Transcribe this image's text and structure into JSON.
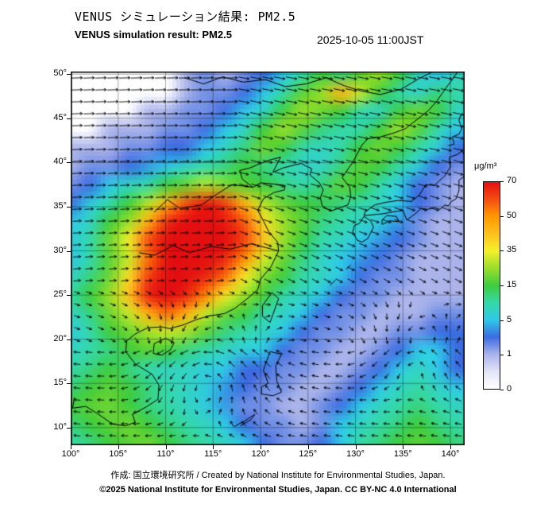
{
  "header": {
    "title_jp": "VENUS シミュレーション結果: PM2.5",
    "title_en": "VENUS simulation result: PM2.5",
    "timestamp": "2025-10-05 11:00JST"
  },
  "footer": {
    "credit": "作成: 国立環境研究所 / Created by National Institute for Environmental Studies, Japan.",
    "license": "©2025 National Institute for Environmental Studies, Japan. CC BY-NC 4.0 International"
  },
  "colorbar": {
    "unit": "μg/m³",
    "ticks": [
      0,
      1,
      5,
      15,
      35,
      50,
      70
    ]
  },
  "axes": {
    "x_ticks": [
      "100°",
      "105°",
      "110°",
      "115°",
      "120°",
      "125°",
      "130°",
      "135°",
      "140°"
    ],
    "x_tick_lons": [
      100,
      105,
      110,
      115,
      120,
      125,
      130,
      135,
      140
    ],
    "y_ticks": [
      "50°",
      "45°",
      "40°",
      "35°",
      "30°",
      "25°",
      "20°",
      "15°",
      "10°"
    ],
    "y_tick_lats": [
      50,
      45,
      40,
      35,
      30,
      25,
      20,
      15,
      10
    ]
  },
  "chart_data": {
    "type": "heatmap",
    "title": "VENUS simulation result: PM2.5",
    "unit": "μg/m³",
    "plot_range": {
      "lon": [
        100,
        141.5
      ],
      "lat": [
        8,
        50.3
      ]
    },
    "lon": [
      100,
      102,
      104,
      106,
      108,
      110,
      112,
      114,
      116,
      118,
      120,
      122,
      124,
      126,
      128,
      130,
      132,
      134,
      136,
      138,
      140
    ],
    "lat": [
      50,
      48,
      46,
      44,
      42,
      40,
      38,
      36,
      34,
      32,
      30,
      28,
      26,
      24,
      22,
      20,
      18,
      16,
      14,
      12,
      10
    ],
    "values": [
      [
        0,
        0,
        0,
        0,
        0,
        0,
        1,
        2,
        1,
        2,
        3,
        5,
        10,
        15,
        12,
        18,
        25,
        15,
        8,
        5,
        8
      ],
      [
        0,
        0,
        0,
        0,
        0,
        0,
        1,
        2,
        2,
        3,
        5,
        10,
        18,
        25,
        45,
        30,
        15,
        10,
        8,
        12,
        10
      ],
      [
        0,
        0,
        0,
        0,
        1,
        1,
        2,
        2,
        3,
        5,
        8,
        15,
        25,
        20,
        15,
        10,
        8,
        15,
        20,
        15,
        8
      ],
      [
        0,
        0,
        1,
        1,
        1,
        2,
        2,
        3,
        5,
        8,
        15,
        25,
        18,
        12,
        10,
        10,
        15,
        25,
        18,
        10,
        5
      ],
      [
        1,
        1,
        1,
        2,
        2,
        3,
        3,
        5,
        8,
        12,
        20,
        15,
        10,
        8,
        10,
        15,
        20,
        15,
        10,
        6,
        3
      ],
      [
        1,
        2,
        2,
        3,
        4,
        5,
        8,
        10,
        12,
        15,
        12,
        10,
        8,
        8,
        12,
        18,
        15,
        10,
        6,
        3,
        2
      ],
      [
        2,
        3,
        5,
        8,
        10,
        15,
        20,
        28,
        22,
        18,
        15,
        12,
        10,
        12,
        18,
        15,
        10,
        6,
        3,
        2,
        1
      ],
      [
        3,
        6,
        10,
        15,
        28,
        45,
        60,
        68,
        62,
        45,
        28,
        20,
        15,
        14,
        12,
        10,
        8,
        5,
        3,
        2,
        1
      ],
      [
        5,
        8,
        15,
        25,
        45,
        65,
        70,
        70,
        68,
        58,
        38,
        25,
        18,
        12,
        10,
        8,
        6,
        4,
        2,
        1,
        1
      ],
      [
        6,
        10,
        20,
        35,
        60,
        70,
        70,
        70,
        70,
        62,
        42,
        25,
        15,
        10,
        8,
        5,
        4,
        3,
        2,
        1,
        1
      ],
      [
        5,
        10,
        18,
        30,
        55,
        70,
        70,
        70,
        66,
        52,
        32,
        20,
        12,
        8,
        5,
        4,
        3,
        2,
        1,
        1,
        1
      ],
      [
        8,
        12,
        20,
        38,
        62,
        70,
        70,
        66,
        56,
        36,
        22,
        15,
        10,
        8,
        5,
        3,
        2,
        2,
        1,
        1,
        1
      ],
      [
        10,
        15,
        25,
        42,
        66,
        70,
        66,
        52,
        36,
        25,
        16,
        10,
        8,
        5,
        3,
        2,
        2,
        1,
        1,
        1,
        1
      ],
      [
        8,
        12,
        20,
        30,
        46,
        56,
        46,
        30,
        20,
        15,
        10,
        8,
        5,
        3,
        2,
        2,
        1,
        1,
        1,
        2,
        2
      ],
      [
        6,
        10,
        15,
        20,
        26,
        30,
        26,
        18,
        12,
        10,
        8,
        5,
        3,
        2,
        2,
        1,
        1,
        2,
        2,
        3,
        3
      ],
      [
        8,
        10,
        12,
        15,
        18,
        15,
        12,
        10,
        8,
        6,
        5,
        3,
        2,
        2,
        1,
        1,
        2,
        3,
        5,
        5,
        3
      ],
      [
        10,
        12,
        15,
        12,
        10,
        8,
        8,
        6,
        5,
        3,
        3,
        2,
        2,
        1,
        1,
        2,
        3,
        5,
        8,
        5,
        3
      ],
      [
        12,
        15,
        18,
        15,
        12,
        10,
        8,
        6,
        4,
        3,
        2,
        2,
        1,
        1,
        2,
        3,
        5,
        8,
        10,
        8,
        5
      ],
      [
        15,
        18,
        20,
        15,
        12,
        10,
        8,
        6,
        4,
        2,
        2,
        1,
        1,
        2,
        3,
        5,
        8,
        10,
        12,
        10,
        8
      ],
      [
        12,
        15,
        18,
        20,
        15,
        12,
        10,
        8,
        5,
        3,
        2,
        2,
        1,
        2,
        5,
        8,
        10,
        12,
        15,
        12,
        10
      ],
      [
        10,
        12,
        15,
        18,
        20,
        15,
        12,
        10,
        8,
        5,
        3,
        2,
        2,
        3,
        5,
        10,
        12,
        15,
        18,
        15,
        12
      ]
    ],
    "scale": {
      "values": [
        0,
        0.5,
        1,
        3,
        5,
        10,
        15,
        25,
        35,
        42,
        50,
        60,
        70
      ],
      "colors": [
        "#ffffff",
        "#e2e4f7",
        "#aab3ea",
        "#3b6ce0",
        "#2fc8e8",
        "#35d8a8",
        "#3ecc3e",
        "#9ade2a",
        "#f4f02a",
        "#ffc41e",
        "#ff9800",
        "#f44d12",
        "#e31010"
      ]
    },
    "wind_model": {
      "northern": {
        "lat_min": 26,
        "u_base": 0.55,
        "u_per_deg": 0.045,
        "east_lon": 118,
        "v_east": -0.3,
        "v_west": 0.05
      },
      "mid": {
        "u": 0.25,
        "v": -0.08
      },
      "southern": {
        "lat_max": 19,
        "u": -0.45,
        "v": 0.05
      },
      "vortices": [
        {
          "lon": 114.5,
          "lat": 16.5,
          "radius": 5.5,
          "strength": 1.3
        },
        {
          "lon": 136.5,
          "lat": 18.5,
          "radius": 4.5,
          "strength": 1.0
        }
      ]
    },
    "coastlines": [
      [
        [
          100.4,
          13.4
        ],
        [
          100.2,
          12.2
        ],
        [
          101.6,
          12.4
        ],
        [
          102.8,
          11.6
        ],
        [
          104.4,
          10.4
        ],
        [
          105.8,
          10.2
        ],
        [
          106.8,
          10.6
        ],
        [
          106.5,
          11.5
        ],
        [
          107.9,
          12.3
        ],
        [
          109.2,
          13.2
        ],
        [
          109.3,
          14.8
        ],
        [
          108.6,
          16.0
        ],
        [
          106.8,
          17.2
        ],
        [
          105.8,
          18.6
        ],
        [
          105.9,
          19.8
        ],
        [
          106.8,
          20.6
        ],
        [
          108.1,
          21.3
        ],
        [
          109.6,
          21.4
        ],
        [
          110.4,
          21.2
        ],
        [
          111.8,
          21.6
        ],
        [
          113.2,
          22.2
        ],
        [
          114.4,
          22.6
        ],
        [
          116.2,
          22.9
        ],
        [
          117.3,
          23.5
        ],
        [
          118.5,
          24.5
        ],
        [
          119.7,
          25.6
        ],
        [
          120.0,
          26.8
        ],
        [
          121.1,
          28.2
        ],
        [
          121.9,
          30.0
        ],
        [
          121.8,
          31.0
        ],
        [
          120.9,
          32.1
        ],
        [
          120.3,
          33.4
        ],
        [
          119.7,
          34.6
        ],
        [
          120.3,
          35.9
        ],
        [
          121.4,
          36.6
        ],
        [
          122.5,
          36.9
        ],
        [
          122.6,
          37.4
        ],
        [
          121.1,
          37.6
        ],
        [
          120.0,
          37.7
        ],
        [
          119.2,
          37.2
        ],
        [
          118.1,
          38.1
        ],
        [
          117.8,
          39.1
        ],
        [
          118.9,
          39.4
        ],
        [
          120.0,
          39.9
        ],
        [
          121.0,
          40.3
        ],
        [
          122.1,
          40.6
        ],
        [
          121.3,
          38.9
        ],
        [
          122.4,
          39.4
        ],
        [
          123.5,
          39.7
        ],
        [
          124.3,
          39.9
        ],
        [
          124.8,
          39.6
        ],
        [
          125.4,
          39.3
        ],
        [
          125.2,
          38.6
        ],
        [
          126.2,
          37.7
        ],
        [
          126.6,
          36.9
        ],
        [
          126.3,
          36.0
        ],
        [
          126.5,
          35.1
        ],
        [
          127.4,
          34.5
        ],
        [
          128.4,
          34.9
        ],
        [
          129.2,
          35.2
        ],
        [
          129.5,
          36.1
        ],
        [
          129.4,
          37.2
        ],
        [
          128.6,
          38.3
        ],
        [
          129.1,
          39.1
        ],
        [
          129.7,
          40.0
        ],
        [
          130.7,
          42.0
        ],
        [
          131.3,
          42.7
        ],
        [
          132.6,
          42.9
        ],
        [
          133.9,
          43.3
        ],
        [
          135.2,
          43.8
        ],
        [
          136.4,
          44.8
        ],
        [
          137.7,
          45.9
        ],
        [
          138.6,
          47.0
        ],
        [
          139.5,
          48.4
        ],
        [
          140.2,
          49.4
        ],
        [
          140.7,
          50.2
        ]
      ],
      [
        [
          130.2,
          31.2
        ],
        [
          129.7,
          32.1
        ],
        [
          129.9,
          32.9
        ],
        [
          130.4,
          33.1
        ],
        [
          130.9,
          33.9
        ],
        [
          131.6,
          33.4
        ],
        [
          131.9,
          32.7
        ],
        [
          131.3,
          31.4
        ],
        [
          130.7,
          31.0
        ],
        [
          130.2,
          31.2
        ]
      ],
      [
        [
          130.9,
          34.0
        ],
        [
          131.9,
          34.1
        ],
        [
          132.9,
          34.2
        ],
        [
          133.9,
          34.4
        ],
        [
          135.0,
          34.6
        ],
        [
          135.4,
          33.5
        ],
        [
          136.3,
          34.2
        ],
        [
          136.9,
          34.8
        ],
        [
          137.6,
          34.7
        ],
        [
          138.3,
          34.9
        ],
        [
          138.9,
          34.7
        ],
        [
          139.4,
          35.2
        ],
        [
          139.8,
          35.1
        ],
        [
          140.1,
          35.6
        ],
        [
          140.6,
          35.9
        ],
        [
          140.9,
          36.8
        ],
        [
          140.9,
          38.0
        ],
        [
          141.4,
          38.4
        ],
        [
          141.6,
          39.5
        ],
        [
          141.8,
          40.5
        ],
        [
          141.2,
          41.3
        ],
        [
          140.7,
          40.9
        ],
        [
          139.9,
          40.6
        ],
        [
          140.0,
          39.5
        ],
        [
          139.4,
          38.5
        ],
        [
          138.3,
          37.4
        ],
        [
          137.4,
          37.5
        ],
        [
          137.0,
          36.8
        ],
        [
          136.7,
          36.3
        ],
        [
          135.9,
          35.6
        ],
        [
          134.5,
          35.7
        ],
        [
          133.2,
          35.5
        ],
        [
          132.0,
          35.2
        ],
        [
          131.0,
          34.4
        ],
        [
          130.9,
          34.0
        ]
      ],
      [
        [
          132.8,
          33.0
        ],
        [
          133.6,
          33.4
        ],
        [
          134.6,
          33.3
        ],
        [
          134.3,
          33.9
        ],
        [
          133.3,
          34.0
        ],
        [
          132.8,
          33.5
        ],
        [
          132.8,
          33.0
        ]
      ],
      [
        [
          139.8,
          41.9
        ],
        [
          140.4,
          42.1
        ],
        [
          140.2,
          42.9
        ],
        [
          140.9,
          43.2
        ],
        [
          141.2,
          43.8
        ],
        [
          140.9,
          44.8
        ],
        [
          141.1,
          45.4
        ]
      ],
      [
        [
          120.2,
          22.6
        ],
        [
          121.0,
          21.9
        ],
        [
          121.9,
          24.6
        ],
        [
          121.2,
          25.3
        ],
        [
          120.2,
          23.8
        ],
        [
          120.2,
          22.6
        ]
      ],
      [
        [
          108.7,
          18.4
        ],
        [
          109.6,
          18.2
        ],
        [
          110.5,
          18.8
        ],
        [
          110.9,
          19.6
        ],
        [
          110.0,
          20.1
        ],
        [
          108.8,
          19.5
        ],
        [
          108.7,
          18.4
        ]
      ],
      [
        [
          120.1,
          13.8
        ],
        [
          121.3,
          13.6
        ],
        [
          122.2,
          14.0
        ],
        [
          121.7,
          15.3
        ],
        [
          121.6,
          17.0
        ],
        [
          122.2,
          18.3
        ],
        [
          121.0,
          18.6
        ],
        [
          120.3,
          16.5
        ],
        [
          120.8,
          15.0
        ],
        [
          120.1,
          14.6
        ],
        [
          120.1,
          13.8
        ]
      ],
      [
        [
          117.2,
          10.1
        ],
        [
          118.4,
          10.8
        ],
        [
          119.4,
          11.5
        ],
        [
          119.0,
          10.9
        ],
        [
          117.9,
          10.2
        ]
      ],
      [
        [
          129.5,
          28.4
        ],
        [
          129.0,
          27.9
        ]
      ],
      [
        [
          127.9,
          26.7
        ],
        [
          127.3,
          26.1
        ]
      ],
      [
        [
          112.0,
          49.6
        ],
        [
          114.0,
          48.9
        ],
        [
          116.0,
          49.7
        ],
        [
          118.2,
          49.1
        ],
        [
          120.5,
          49.4
        ],
        [
          122.6,
          48.6
        ],
        [
          124.8,
          48.9
        ],
        [
          126.9,
          49.6
        ],
        [
          128.8,
          48.7
        ],
        [
          130.6,
          48.1
        ],
        [
          132.6,
          47.7
        ],
        [
          134.8,
          48.3
        ],
        [
          136.7,
          49.5
        ],
        [
          138.0,
          50.2
        ]
      ],
      [
        [
          121.9,
          30.0
        ],
        [
          119.0,
          30.8
        ],
        [
          116.8,
          30.2
        ],
        [
          114.8,
          30.5
        ],
        [
          112.5,
          29.8
        ],
        [
          110.8,
          30.6
        ],
        [
          108.8,
          29.5
        ],
        [
          107.2,
          29.8
        ]
      ],
      [
        [
          119.2,
          37.2
        ],
        [
          117.0,
          37.5
        ],
        [
          115.5,
          36.5
        ],
        [
          113.8,
          35.2
        ],
        [
          111.5,
          34.8
        ],
        [
          110.2,
          35.8
        ],
        [
          108.8,
          34.4
        ]
      ]
    ]
  }
}
